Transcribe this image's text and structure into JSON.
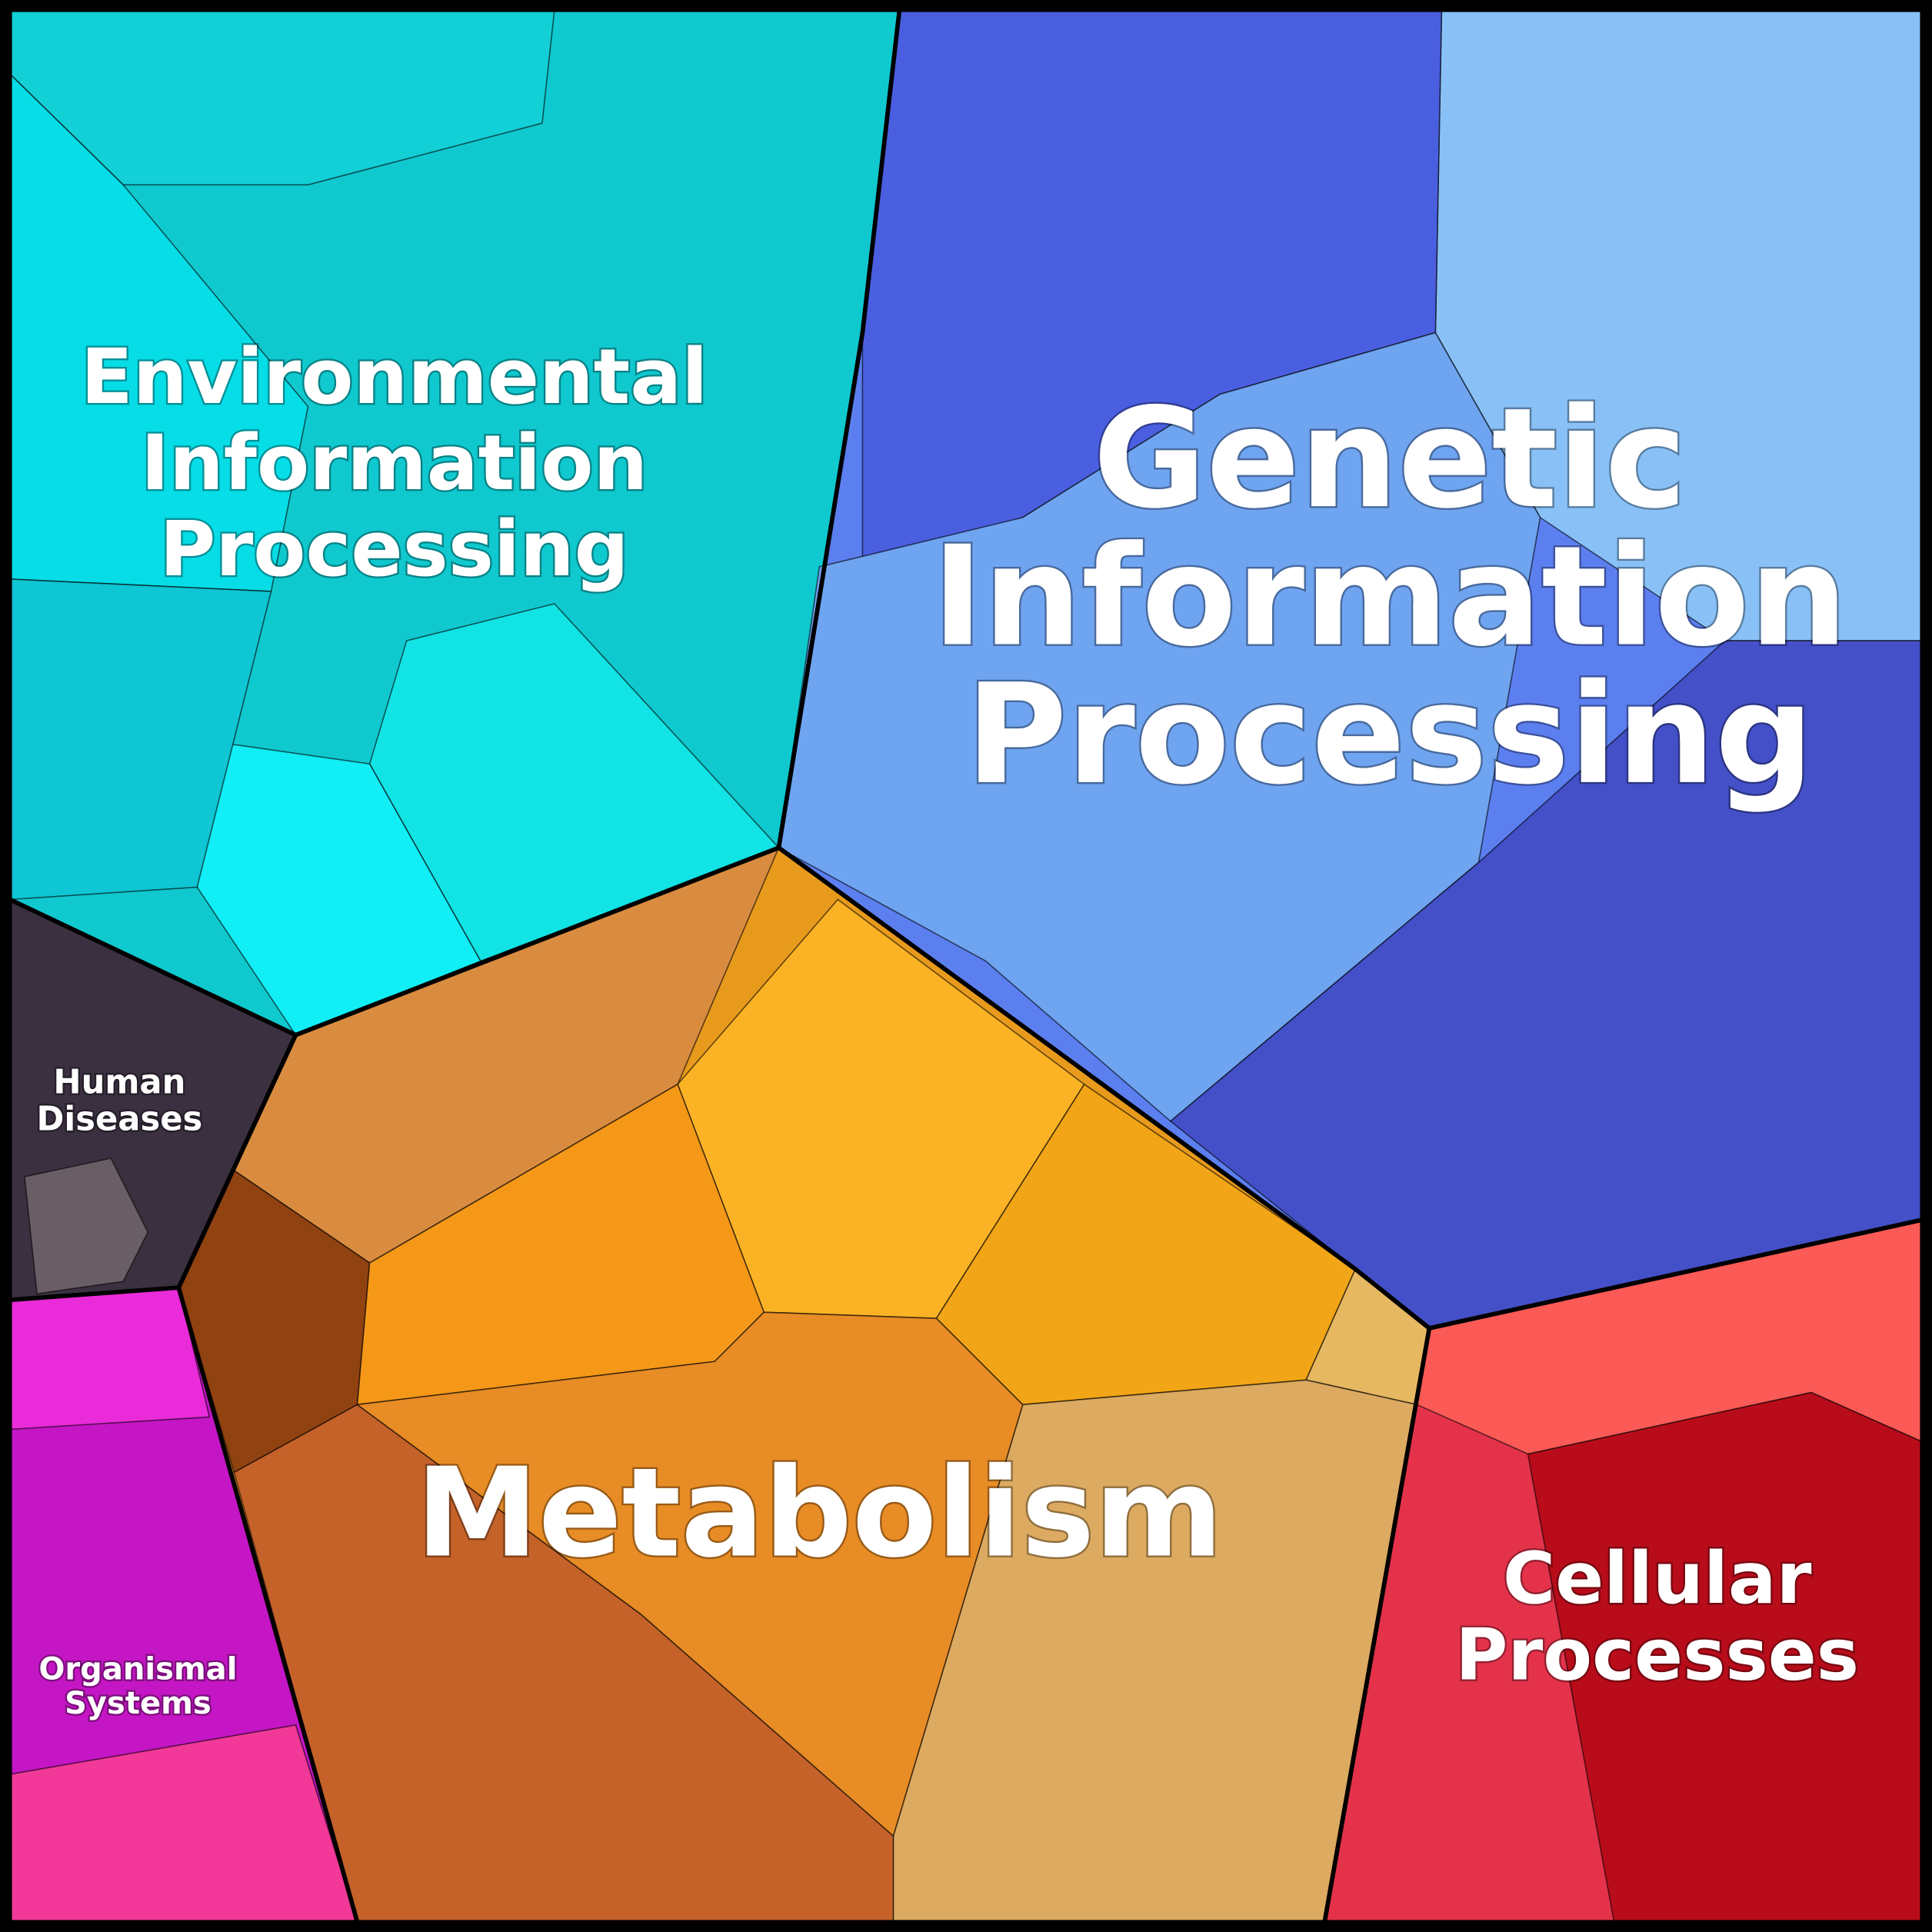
{
  "regions": [
    {
      "label": [
        "Environmental",
        "Information",
        "Processing"
      ]
    },
    {
      "label": [
        "Genetic",
        "Information",
        "Processing"
      ]
    },
    {
      "label": [
        "Human",
        "Diseases"
      ]
    },
    {
      "label": [
        "Organismal",
        "Systems"
      ]
    },
    {
      "label": [
        "Metabolism"
      ]
    },
    {
      "label": [
        "Cellular",
        "Processes"
      ]
    }
  ]
}
